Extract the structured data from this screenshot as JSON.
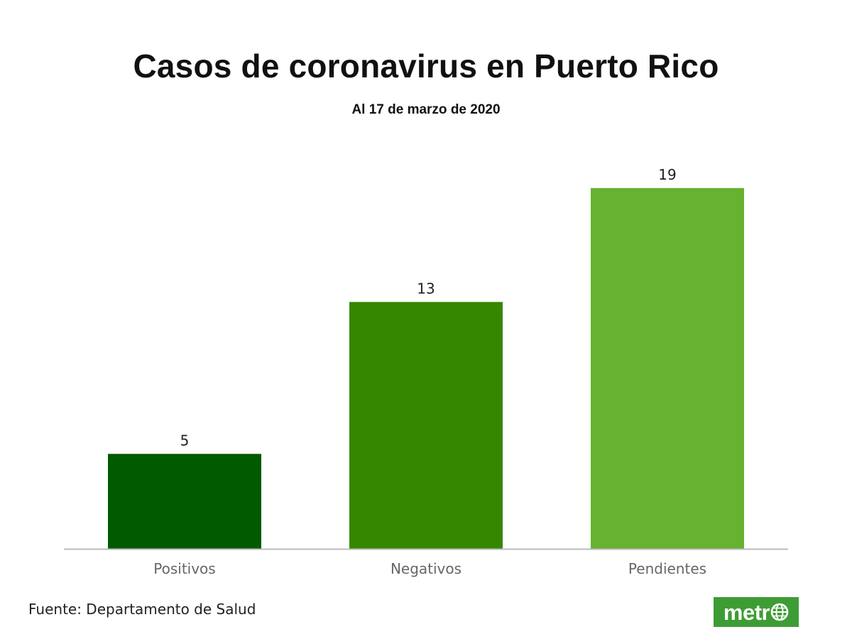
{
  "title": "Casos de coronavirus en Puerto Rico",
  "subtitle": "Al 17 de marzo de 2020",
  "source": "Fuente: Departamento de Salud",
  "logo": {
    "text": "metr",
    "icon": "globe-icon",
    "color": "#3e9c35"
  },
  "chart_data": {
    "type": "bar",
    "categories": [
      "Positivos",
      "Negativos",
      "Pendientes"
    ],
    "values": [
      5,
      13,
      19
    ],
    "colors": [
      "#005a00",
      "#368700",
      "#67b230"
    ],
    "data_labels": [
      "5",
      "13",
      "19"
    ],
    "ylim": [
      0,
      21.2
    ],
    "grid": false,
    "legend": "none",
    "baseline_color": "#bbbbbb"
  }
}
